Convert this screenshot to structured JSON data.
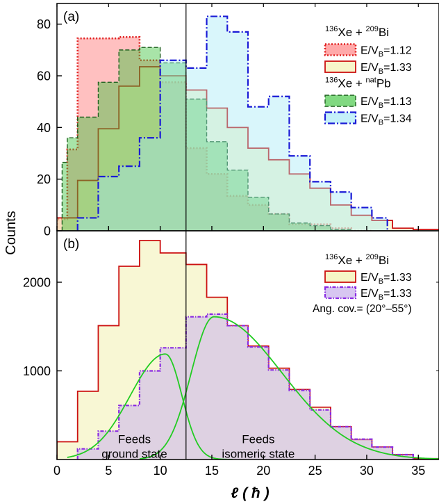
{
  "figure": {
    "ylabel": "Counts",
    "xlabel": "ℓ ( ħ )"
  },
  "chart_data": [
    {
      "type": "area",
      "panel_label": "(a)",
      "xlim": [
        0,
        37
      ],
      "ylim": [
        0,
        88
      ],
      "x_ticks": [
        0,
        5,
        10,
        15,
        20,
        25,
        30,
        35
      ],
      "y_ticks": [
        0,
        20,
        40,
        60,
        80
      ],
      "y_tick_labels": [
        "0",
        "20",
        "40",
        "60",
        "80"
      ],
      "vline_x": 12.5,
      "legend_position": "top-right",
      "legend": [
        {
          "type": "header",
          "pre": "136",
          "mid": "Xe + ",
          "pre2": "209",
          "post": "Bi"
        },
        {
          "type": "series",
          "ref": 0,
          "text": "E/V",
          "sub": "B",
          "value": "=1.12"
        },
        {
          "type": "series",
          "ref": 1,
          "text": "E/V",
          "sub": "B",
          "value": "=1.33"
        },
        {
          "type": "header",
          "pre": "136",
          "mid": "Xe + ",
          "pre2": "nat",
          "post": "Pb"
        },
        {
          "type": "series",
          "ref": 2,
          "text": "E/V",
          "sub": "B",
          "value": "=1.13"
        },
        {
          "type": "series",
          "ref": 3,
          "text": "E/V",
          "sub": "B",
          "value": "=1.34"
        }
      ],
      "series": [
        {
          "color": "#e02020",
          "fill": "#ff8c8c",
          "fill_opacity": 0.55,
          "dash": "2,2.5",
          "width": 2.6,
          "edges": [
            0,
            1,
            2,
            4,
            6,
            8,
            10,
            12.5,
            14.5,
            16.5,
            18.5,
            20.5,
            22.5,
            24.5,
            26.5,
            28.5,
            30.5
          ],
          "values": [
            4.5,
            31.5,
            74.5,
            74.5,
            75,
            66,
            57.5,
            32,
            22,
            13.5,
            10,
            6.5,
            2.5,
            2.5,
            1,
            0
          ]
        },
        {
          "color": "#cc1111",
          "fill": "#f4f2b8",
          "fill_opacity": 0.55,
          "dash": "",
          "width": 1.8,
          "edges": [
            -1,
            1,
            2,
            4,
            6,
            8,
            10,
            12.5,
            14.5,
            16.5,
            18.5,
            20.5,
            22.5,
            24.5,
            26.5,
            28.5,
            30.5,
            32.5,
            34.5,
            37
          ],
          "values": [
            5,
            5,
            19.5,
            39.5,
            56,
            63.5,
            60,
            54.5,
            47.5,
            40,
            32,
            27.5,
            22,
            16.5,
            10,
            6,
            4,
            1,
            0.5
          ]
        },
        {
          "color": "#1f5f1f",
          "fill": "#3dc43d",
          "fill_opacity": 0.45,
          "dash": "6,3",
          "width": 1.4,
          "edges": [
            0.5,
            1,
            2,
            4,
            6,
            8,
            10,
            12.5,
            14.5,
            16.5,
            18.5,
            20.5,
            22.5,
            24.5,
            26.5,
            28.5
          ],
          "values": [
            26.5,
            36,
            44,
            57.5,
            70,
            71,
            65,
            51,
            34.5,
            23.5,
            13,
            6.5,
            3,
            2,
            0.5
          ]
        },
        {
          "color": "#1a1ad6",
          "fill": "#9fe8f5",
          "fill_opacity": 0.4,
          "dash": "10,3,2,3",
          "width": 2.2,
          "edges": [
            2,
            4,
            6,
            8,
            10,
            12.5,
            14.5,
            16.5,
            18.5,
            20.5,
            22.5,
            24.5,
            26.5,
            28.5,
            30.5,
            32
          ],
          "values": [
            5,
            21,
            25,
            36,
            66,
            63,
            83,
            77,
            48,
            52,
            29,
            19,
            15,
            9,
            5
          ]
        }
      ]
    },
    {
      "type": "area",
      "panel_label": "(b)",
      "xlim": [
        0,
        37
      ],
      "ylim": [
        0,
        2580
      ],
      "x_ticks": [
        0,
        5,
        10,
        15,
        20,
        25,
        30,
        35
      ],
      "x_tick_labels": [
        "0",
        "5",
        "10",
        "15",
        "20",
        "25",
        "30",
        "35"
      ],
      "y_ticks": [
        1000,
        2000
      ],
      "y_tick_labels": [
        "1000",
        "2000"
      ],
      "vline_x": 12.5,
      "legend_position": "top-right",
      "legend": [
        {
          "type": "header",
          "pre": "136",
          "mid": "Xe + ",
          "pre2": "209",
          "post": "Bi"
        },
        {
          "type": "series",
          "ref": 0,
          "text": "E/V",
          "sub": "B",
          "value": "=1.33"
        },
        {
          "type": "series",
          "ref": 1,
          "text": "E/V",
          "sub": "B",
          "value": "=1.33"
        },
        {
          "type": "plain",
          "text": "Ang. cov.= (20°–55°)"
        }
      ],
      "annotations": [
        {
          "lines": [
            "Feeds",
            "ground state"
          ],
          "x": 7.5,
          "y": 230
        },
        {
          "lines": [
            "Feeds",
            "isomeric state"
          ],
          "x": 19.5,
          "y": 230
        }
      ],
      "series": [
        {
          "color": "#cc1111",
          "fill": "#f4f2b8",
          "fill_opacity": 0.6,
          "dash": "",
          "width": 1.8,
          "edges": [
            0,
            2,
            4,
            6,
            8,
            10,
            12.5,
            14.5,
            16.5,
            18.5,
            20.5,
            22.5,
            24.5,
            26.5,
            28.5,
            30.5,
            32.5,
            34.5,
            37
          ],
          "values": [
            200,
            770,
            1510,
            2180,
            2470,
            2330,
            2200,
            1830,
            1510,
            1280,
            1030,
            790,
            590,
            370,
            225,
            140,
            55,
            10
          ]
        },
        {
          "color": "#8a2be2",
          "fill": "#c9b3ec",
          "fill_opacity": 0.55,
          "dash": "5,2,1.5,2",
          "width": 2.2,
          "edges": [
            2,
            4,
            6,
            8,
            10,
            12.5,
            14.5,
            16.5,
            18.5,
            20.5,
            22.5,
            24.5,
            26.5,
            28.5,
            30.5,
            32.5,
            34.5
          ],
          "values": [
            120,
            320,
            610,
            1000,
            1260,
            1610,
            1640,
            1510,
            1270,
            1010,
            780,
            560,
            370,
            230,
            140,
            55
          ]
        }
      ],
      "fits": [
        {
          "color": "#22cc22",
          "peak": 1190,
          "mu": 10.5,
          "sigma_left": 3.4,
          "sigma_right": 1.6,
          "range": [
            1,
            17
          ]
        },
        {
          "color": "#22cc22",
          "peak": 1610,
          "mu": 15.2,
          "sigma_left": 2.2,
          "sigma_right": 6.6,
          "range": [
            8,
            37
          ]
        }
      ]
    }
  ]
}
